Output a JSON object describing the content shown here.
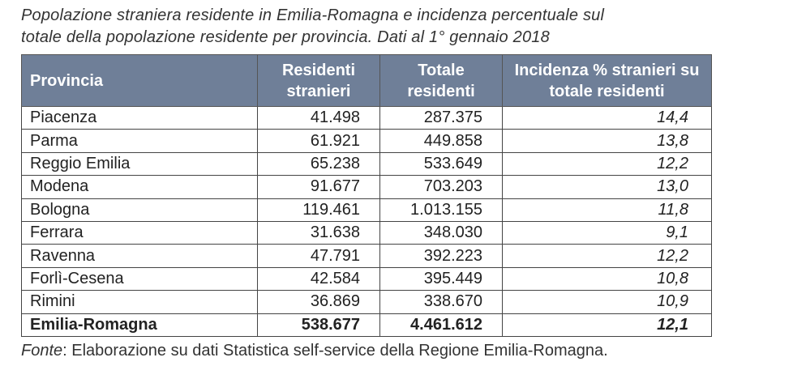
{
  "title_lines": [
    "Popolazione straniera residente in Emilia-Romagna e incidenza percentuale sul",
    "totale della popolazione residente per provincia. Dati al 1° gennaio 2018"
  ],
  "headers": [
    "Provincia",
    "Residenti stranieri",
    "Totale residenti",
    "Incidenza % stranieri su totale residenti"
  ],
  "rows": [
    [
      "Piacenza",
      "41.498",
      "287.375",
      "14,4"
    ],
    [
      "Parma",
      "61.921",
      "449.858",
      "13,8"
    ],
    [
      "Reggio Emilia",
      "65.238",
      "533.649",
      "12,2"
    ],
    [
      "Modena",
      "91.677",
      "703.203",
      "13,0"
    ],
    [
      "Bologna",
      "119.461",
      "1.013.155",
      "11,8"
    ],
    [
      "Ferrara",
      "31.638",
      "348.030",
      "9,1"
    ],
    [
      "Ravenna",
      "47.791",
      "392.223",
      "12,2"
    ],
    [
      "Forlì-Cesena",
      "42.584",
      "395.449",
      "10,8"
    ],
    [
      "Rimini",
      "36.869",
      "338.670",
      "10,9"
    ],
    [
      "Emilia-Romagna",
      "538.677",
      "4.461.612",
      "12,1"
    ]
  ],
  "footer": {
    "label": "Fonte",
    "text": ": Elaborazione su dati Statistica self-service della Regione Emilia-Romagna."
  },
  "colors": {
    "header_bg": "#6f7f98"
  }
}
